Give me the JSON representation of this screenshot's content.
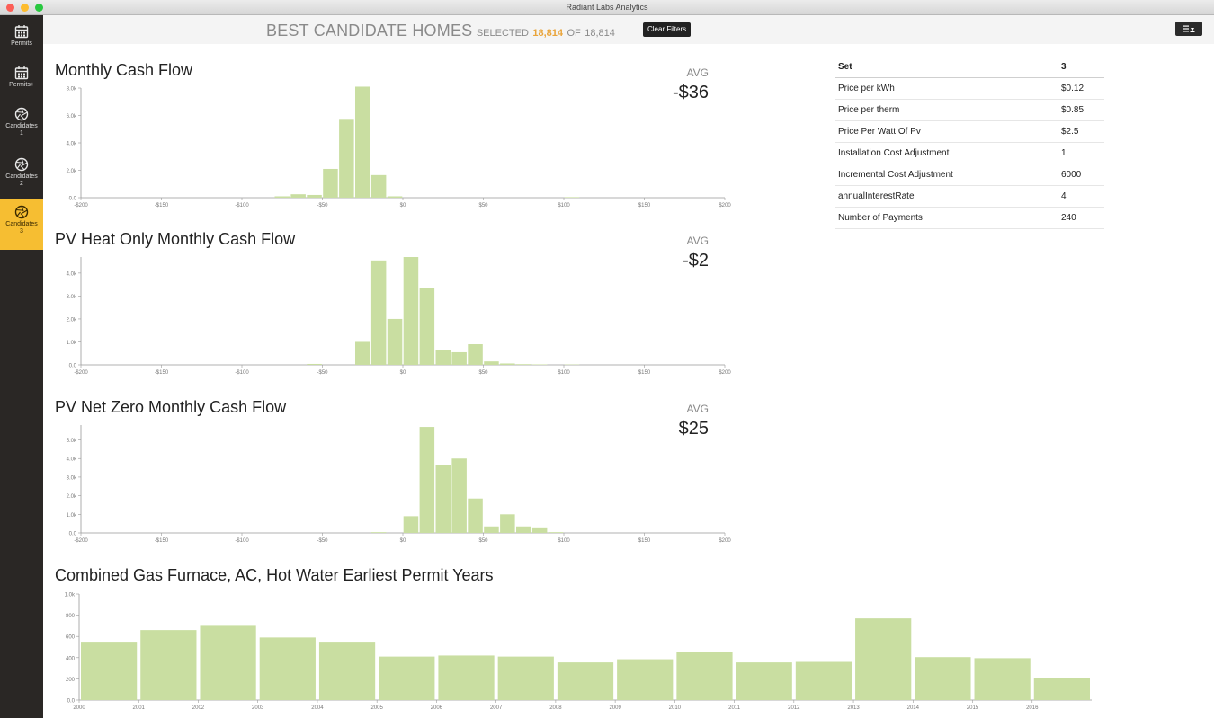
{
  "window": {
    "title": "Radiant Labs Analytics"
  },
  "sidebar": {
    "items": [
      {
        "label": "Permits",
        "sub": "",
        "icon": "calendar-icon"
      },
      {
        "label": "Permits+",
        "sub": "",
        "icon": "calendar-icon"
      },
      {
        "label": "Candidates",
        "sub": "1",
        "icon": "aperture-icon"
      },
      {
        "label": "Candidates",
        "sub": "2",
        "icon": "aperture-icon"
      },
      {
        "label": "Candidates",
        "sub": "3",
        "icon": "aperture-icon"
      }
    ],
    "active_index": 4,
    "active_color": "#f6be32"
  },
  "header": {
    "title": "BEST CANDIDATE HOMES",
    "selected_label": "SELECTED",
    "selected_count": "18,814",
    "of_label": "OF",
    "total_count": "18,814",
    "clear_filters_label": "Clear Filters",
    "accent_color": "#e9a43a"
  },
  "settings_table": {
    "header": {
      "name": "Set",
      "value": "3"
    },
    "rows": [
      {
        "name": "Price per kWh",
        "value": "$0.12"
      },
      {
        "name": "Price per therm",
        "value": "$0.85"
      },
      {
        "name": "Price Per Watt Of Pv",
        "value": "$2.5"
      },
      {
        "name": "Installation Cost Adjustment",
        "value": "1"
      },
      {
        "name": "Incremental Cost Adjustment",
        "value": "6000"
      },
      {
        "name": "annualInterestRate",
        "value": "4"
      },
      {
        "name": "Number of Payments",
        "value": "240"
      }
    ]
  },
  "chart_data": [
    {
      "type": "bar",
      "title": "Monthly Cash Flow",
      "avg_label": "AVG",
      "avg_value": "-$36",
      "bar_color": "#c9dea1",
      "x_range": [
        -200,
        200
      ],
      "bin_width": 10,
      "x_ticks": [
        -200,
        -150,
        -100,
        -50,
        0,
        50,
        100,
        150,
        200
      ],
      "x_tick_labels": [
        "-$200",
        "-$150",
        "-$100",
        "-$50",
        "$0",
        "$50",
        "$100",
        "$150",
        "$200"
      ],
      "ylim": [
        0,
        8000
      ],
      "y_ticks": [
        0,
        2000,
        4000,
        6000,
        8000
      ],
      "y_tick_labels": [
        "0.0",
        "2.0k",
        "4.0k",
        "6.0k",
        "8.0k"
      ],
      "bins": [
        {
          "x0": -80,
          "value": 100
        },
        {
          "x0": -70,
          "value": 250
        },
        {
          "x0": -60,
          "value": 200
        },
        {
          "x0": -50,
          "value": 2100
        },
        {
          "x0": -40,
          "value": 5750
        },
        {
          "x0": -30,
          "value": 8100
        },
        {
          "x0": -20,
          "value": 1650
        },
        {
          "x0": -10,
          "value": 100
        },
        {
          "x0": 100,
          "value": 40
        }
      ]
    },
    {
      "type": "bar",
      "title": "PV Heat Only Monthly Cash Flow",
      "avg_label": "AVG",
      "avg_value": "-$2",
      "bar_color": "#c9dea1",
      "x_range": [
        -200,
        200
      ],
      "bin_width": 10,
      "x_ticks": [
        -200,
        -150,
        -100,
        -50,
        0,
        50,
        100,
        150,
        200
      ],
      "x_tick_labels": [
        "-$200",
        "-$150",
        "-$100",
        "-$50",
        "$0",
        "$50",
        "$100",
        "$150",
        "$200"
      ],
      "ylim": [
        0,
        4700
      ],
      "y_ticks": [
        0,
        1000,
        2000,
        3000,
        4000
      ],
      "y_tick_labels": [
        "0.0",
        "1.0k",
        "2.0k",
        "3.0k",
        "4.0k"
      ],
      "bins": [
        {
          "x0": -60,
          "value": 40
        },
        {
          "x0": -30,
          "value": 1000
        },
        {
          "x0": -20,
          "value": 4550
        },
        {
          "x0": -10,
          "value": 2000
        },
        {
          "x0": 0,
          "value": 4700
        },
        {
          "x0": 10,
          "value": 3350
        },
        {
          "x0": 20,
          "value": 650
        },
        {
          "x0": 30,
          "value": 550
        },
        {
          "x0": 40,
          "value": 900
        },
        {
          "x0": 50,
          "value": 150
        },
        {
          "x0": 60,
          "value": 60
        },
        {
          "x0": 70,
          "value": 30
        },
        {
          "x0": 80,
          "value": 20
        },
        {
          "x0": 100,
          "value": 15
        }
      ]
    },
    {
      "type": "bar",
      "title": "PV Net Zero Monthly Cash Flow",
      "avg_label": "AVG",
      "avg_value": "$25",
      "bar_color": "#c9dea1",
      "x_range": [
        -200,
        200
      ],
      "bin_width": 10,
      "x_ticks": [
        -200,
        -150,
        -100,
        -50,
        0,
        50,
        100,
        150,
        200
      ],
      "x_tick_labels": [
        "-$200",
        "-$150",
        "-$100",
        "-$50",
        "$0",
        "$50",
        "$100",
        "$150",
        "$200"
      ],
      "ylim": [
        0,
        5800
      ],
      "y_ticks": [
        0,
        1000,
        2000,
        3000,
        4000,
        5000
      ],
      "y_tick_labels": [
        "0.0",
        "1.0k",
        "2.0k",
        "3.0k",
        "4.0k",
        "5.0k"
      ],
      "bins": [
        {
          "x0": -20,
          "value": 40
        },
        {
          "x0": 0,
          "value": 900
        },
        {
          "x0": 10,
          "value": 5700
        },
        {
          "x0": 20,
          "value": 3650
        },
        {
          "x0": 30,
          "value": 4000
        },
        {
          "x0": 40,
          "value": 1850
        },
        {
          "x0": 50,
          "value": 350
        },
        {
          "x0": 60,
          "value": 1000
        },
        {
          "x0": 70,
          "value": 350
        },
        {
          "x0": 80,
          "value": 250
        },
        {
          "x0": 90,
          "value": 40
        }
      ]
    },
    {
      "type": "bar",
      "title": "Combined Gas Furnace, AC, Hot Water Earliest Permit Years",
      "bar_color": "#c9dea1",
      "categories": [
        "2000",
        "2001",
        "2002",
        "2003",
        "2004",
        "2005",
        "2006",
        "2007",
        "2008",
        "2009",
        "2010",
        "2011",
        "2012",
        "2013",
        "2014",
        "2015",
        "2016"
      ],
      "values": [
        550,
        660,
        700,
        590,
        550,
        410,
        420,
        410,
        355,
        385,
        450,
        355,
        360,
        770,
        405,
        395,
        210
      ],
      "ylim": [
        0,
        1000
      ],
      "y_ticks": [
        0,
        200,
        400,
        600,
        800,
        1000
      ],
      "y_tick_labels": [
        "0.0",
        "200",
        "400",
        "600",
        "800",
        "1.0k"
      ]
    }
  ]
}
